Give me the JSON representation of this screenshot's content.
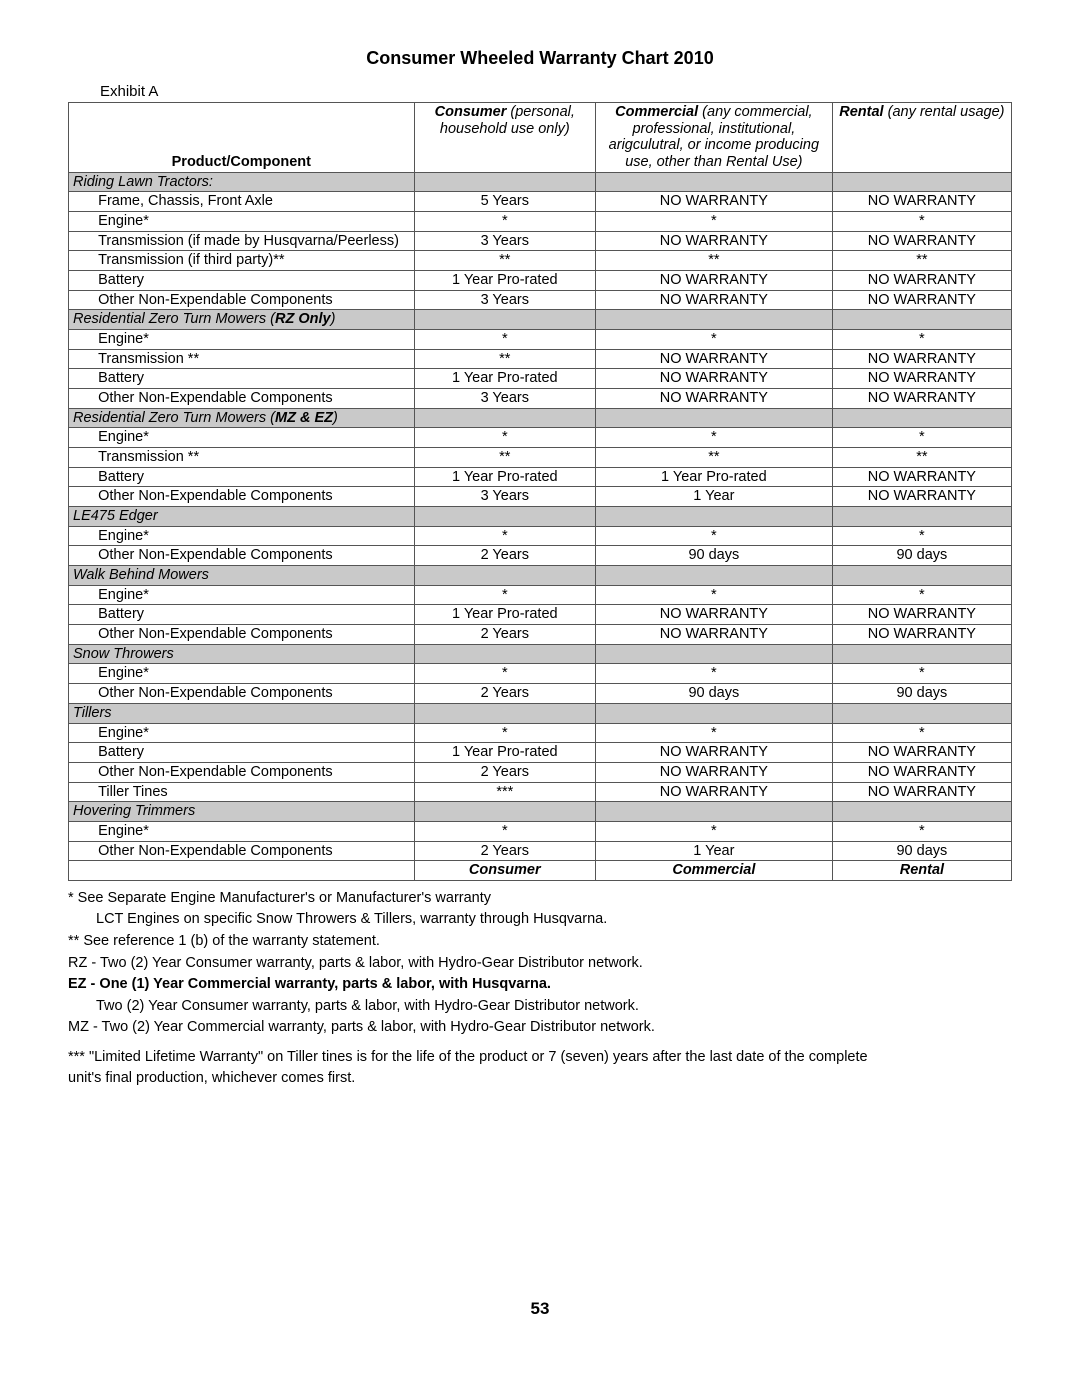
{
  "title": "Consumer Wheeled Warranty Chart 2010",
  "exhibit": "Exhibit A",
  "header": {
    "col1_bold": "Consumer",
    "col1_rest": " (personal, household use only)",
    "col2_bold": "Commercial",
    "col2_rest": " (any commercial, professional, institutional, arigculutral, or income producing use, other than Rental Use)",
    "col3_bold": "Rental",
    "col3_rest": " (any rental usage)",
    "pc": "Product/Component"
  },
  "sections": [
    {
      "title": "Riding Lawn Tractors:",
      "rows": [
        [
          "Frame, Chassis, Front Axle",
          "5 Years",
          "NO WARRANTY",
          "NO WARRANTY"
        ],
        [
          "Engine*",
          "*",
          "*",
          "*"
        ],
        [
          "Transmission (if made by Husqvarna/Peerless)",
          "3 Years",
          "NO WARRANTY",
          "NO WARRANTY"
        ],
        [
          "Transmission (if third party)**",
          "**",
          "**",
          "**"
        ],
        [
          "Battery",
          "1 Year Pro-rated",
          "NO WARRANTY",
          "NO WARRANTY"
        ],
        [
          "Other Non-Expendable Components",
          "3 Years",
          "NO WARRANTY",
          "NO WARRANTY"
        ]
      ]
    },
    {
      "title_pre": "Residential Zero Turn Mowers (",
      "title_bold": "RZ Only",
      "title_post": ")",
      "rows": [
        [
          "Engine*",
          "*",
          "*",
          "*"
        ],
        [
          "Transmission **",
          "**",
          "NO WARRANTY",
          "NO WARRANTY"
        ],
        [
          "Battery",
          "1 Year Pro-rated",
          "NO WARRANTY",
          "NO WARRANTY"
        ],
        [
          "Other Non-Expendable Components",
          "3 Years",
          "NO WARRANTY",
          "NO WARRANTY"
        ]
      ]
    },
    {
      "title_pre": "Residential Zero Turn Mowers (",
      "title_bold": "MZ & EZ",
      "title_post": ")",
      "rows": [
        [
          "Engine*",
          "*",
          "*",
          "*"
        ],
        [
          "Transmission **",
          "**",
          "**",
          "**"
        ],
        [
          "Battery",
          "1 Year Pro-rated",
          "1 Year Pro-rated",
          "NO WARRANTY"
        ],
        [
          "Other Non-Expendable Components",
          "3 Years",
          "1 Year",
          "NO WARRANTY"
        ]
      ]
    },
    {
      "title": "LE475 Edger",
      "rows": [
        [
          "Engine*",
          "*",
          "*",
          "*"
        ],
        [
          "Other Non-Expendable Components",
          "2 Years",
          "90 days",
          "90 days"
        ]
      ]
    },
    {
      "title": "Walk Behind Mowers",
      "rows": [
        [
          "Engine*",
          "*",
          "*",
          "*"
        ],
        [
          "Battery",
          "1 Year Pro-rated",
          "NO WARRANTY",
          "NO WARRANTY"
        ],
        [
          "Other Non-Expendable Components",
          "2 Years",
          "NO WARRANTY",
          "NO WARRANTY"
        ]
      ]
    },
    {
      "title": "Snow Throwers",
      "rows": [
        [
          "Engine*",
          "*",
          "*",
          "*"
        ],
        [
          "Other Non-Expendable Components",
          "2 Years",
          "90 days",
          "90 days"
        ]
      ]
    },
    {
      "title": "Tillers",
      "rows": [
        [
          "Engine*",
          "*",
          "*",
          "*"
        ],
        [
          "Battery",
          "1 Year Pro-rated",
          "NO WARRANTY",
          "NO WARRANTY"
        ],
        [
          "Other Non-Expendable Components",
          "2 Years",
          "NO WARRANTY",
          "NO WARRANTY"
        ],
        [
          "Tiller Tines",
          "***",
          "NO WARRANTY",
          "NO WARRANTY"
        ]
      ]
    },
    {
      "title": "Hovering Trimmers",
      "rows": [
        [
          "Engine*",
          "*",
          "*",
          "*"
        ],
        [
          "Other Non-Expendable Components",
          "2 Years",
          "1 Year",
          "90 days"
        ]
      ]
    }
  ],
  "footer_row": [
    "",
    "Consumer",
    "Commercial",
    "Rental"
  ],
  "notes": {
    "n1": "* See Separate Engine Manufacturer's  or Manufacturer's warranty",
    "n1b": "LCT Engines on specific Snow Throwers & Tillers, warranty through Husqvarna.",
    "n2": "** See reference 1 (b) of the warranty statement.",
    "rz": "RZ - Two (2) Year Consumer warranty, parts & labor, with Hydro-Gear Distributor network.",
    "ez": "EZ - One (1) Year Commercial warranty, parts & labor, with Husqvarna.",
    "ez2": "Two (2) Year Consumer warranty, parts & labor, with Hydro-Gear Distributor network.",
    "mz": "MZ - Two (2) Year Commercial warranty, parts & labor, with Hydro-Gear Distributor network.",
    "n3a": "*** \"Limited Lifetime Warranty\" on Tiller tines is for the life of the product or 7 (seven) years after the last date of the complete",
    "n3b": "unit's final production, whichever comes first."
  },
  "page_number": "53",
  "colors": {
    "section_bg": "#c9c9c9",
    "border": "#555555",
    "text": "#000000",
    "page_bg": "#ffffff"
  }
}
